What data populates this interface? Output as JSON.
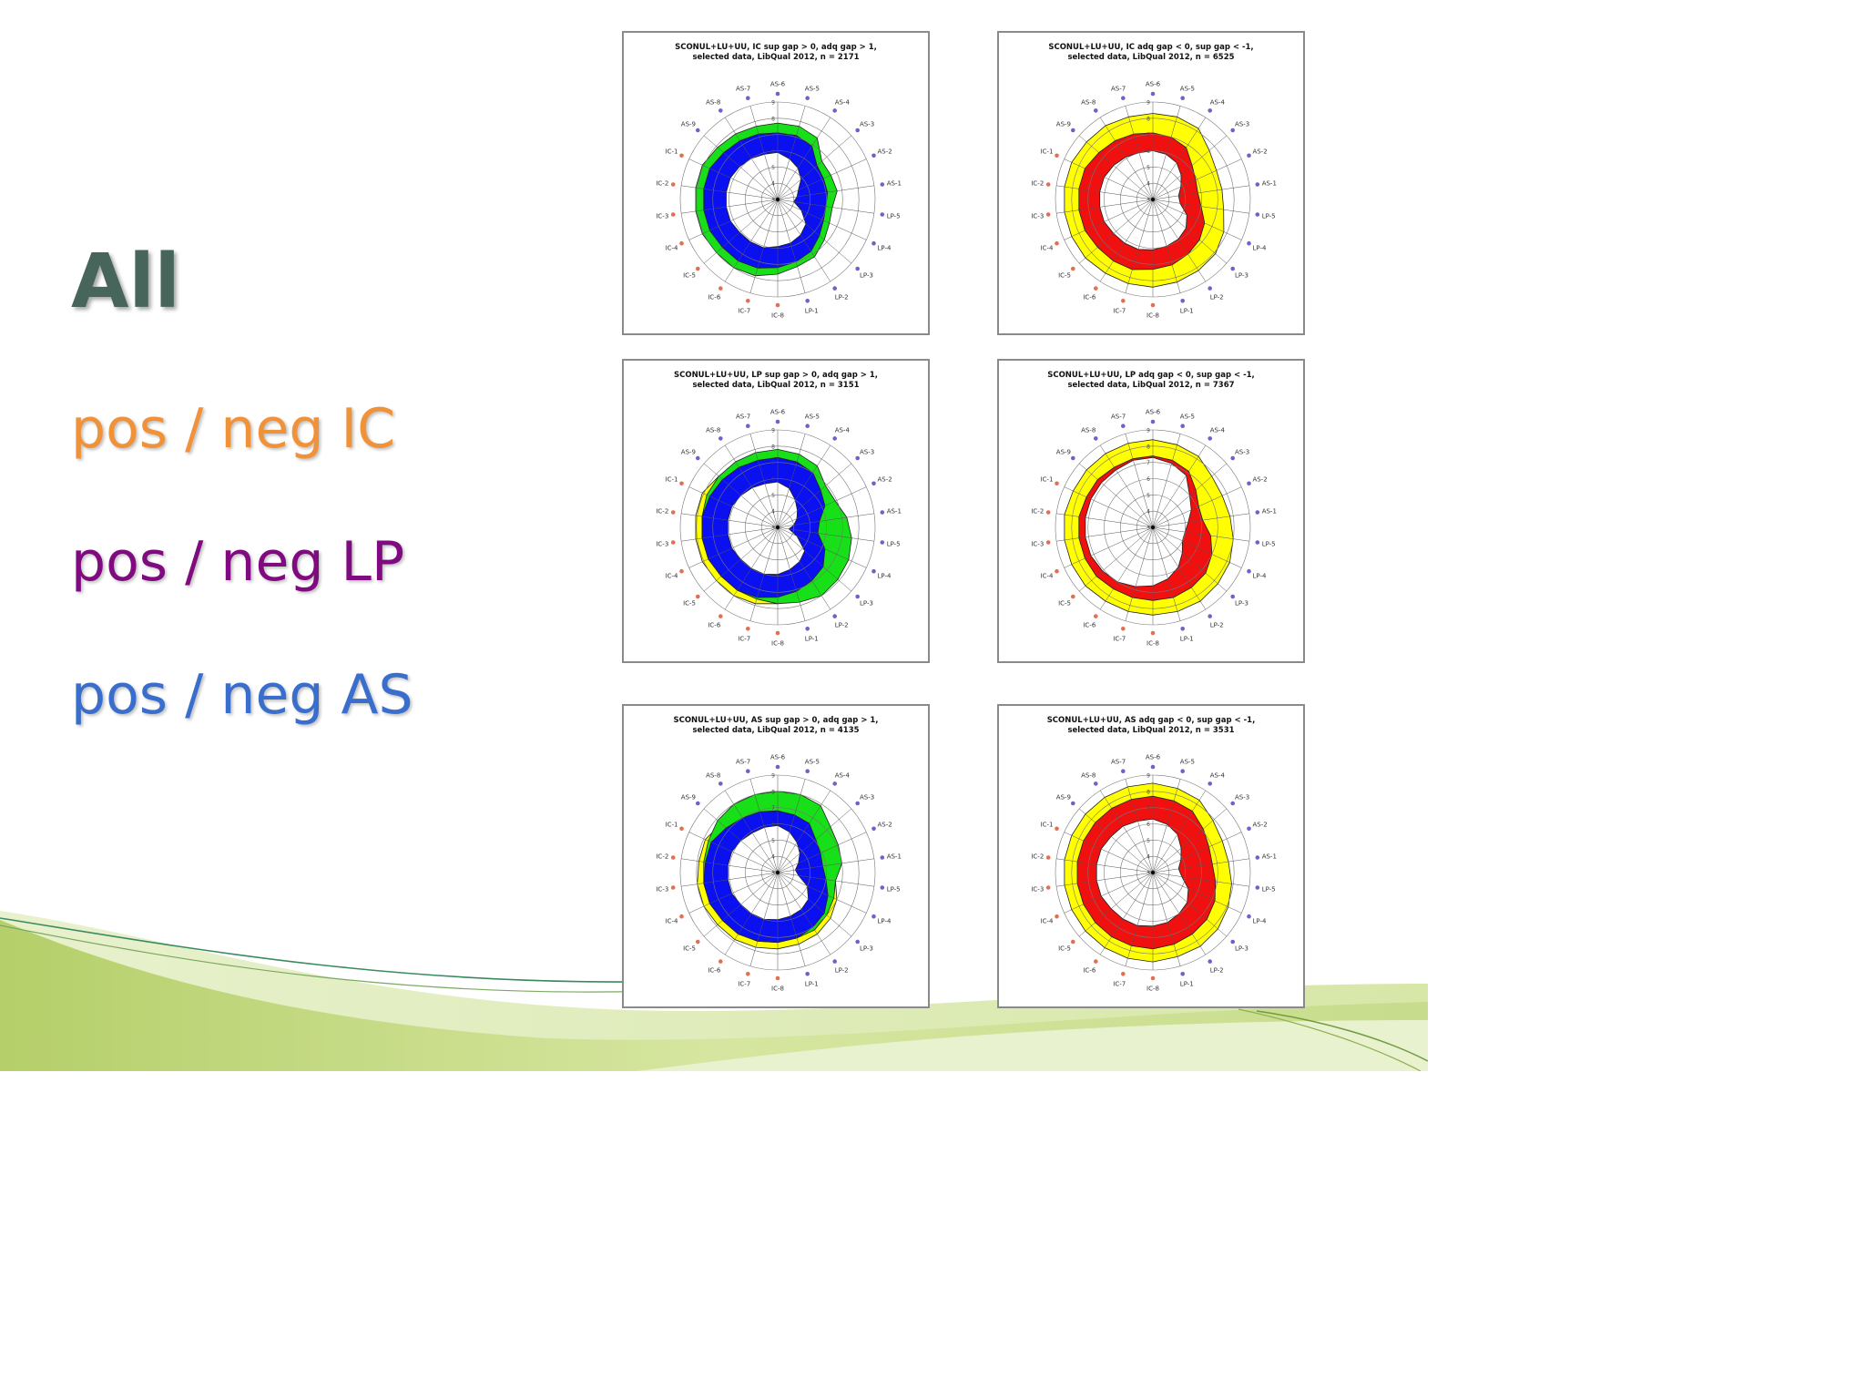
{
  "heading": "All",
  "labels": [
    {
      "text": "pos / neg IC",
      "color": "#f0923a"
    },
    {
      "text": "pos / neg LP",
      "color": "#800a80"
    },
    {
      "text": "pos / neg AS",
      "color": "#3a6ecc"
    }
  ],
  "colors": {
    "heading": "#47655a",
    "green": "#18e018",
    "blue": "#0a10f0",
    "yellow": "#ffff00",
    "red": "#f01010"
  },
  "chart_data": [
    {
      "type": "radar",
      "title_line1": "SCONUL+LU+UU, IC sup gap > 0, adq gap > 1,",
      "title_line2": "selected data, LibQual 2012, n = 2171",
      "categories": [
        "AS-6",
        "AS-5",
        "AS-4",
        "AS-3",
        "AS-2",
        "AS-1",
        "LP-5",
        "LP-4",
        "LP-3",
        "LP-2",
        "LP-1",
        "IC-8",
        "IC-7",
        "IC-6",
        "IC-5",
        "IC-4",
        "IC-3",
        "IC-2",
        "IC-1",
        "AS-9",
        "AS-8",
        "AS-7"
      ],
      "scale_labels": [
        "9",
        "8",
        "7",
        "6",
        "5",
        "4",
        "3"
      ],
      "ylim": [
        3,
        9
      ],
      "series": [
        {
          "color": "green",
          "values": [
            7.7,
            7.7,
            7.5,
            6.6,
            6.6,
            6.7,
            6.4,
            6.5,
            6.8,
            7.2,
            7.3,
            7.6,
            7.9,
            8.0,
            8.0,
            8.1,
            8.1,
            8.1,
            8.1,
            7.9,
            7.8,
            7.7
          ]
        },
        {
          "color": "blue",
          "values": [
            7.1,
            7.1,
            6.9,
            6.2,
            6.1,
            6.1,
            6.0,
            6.1,
            6.4,
            6.8,
            7.0,
            7.2,
            7.4,
            7.5,
            7.5,
            7.6,
            7.6,
            7.6,
            7.6,
            7.4,
            7.3,
            7.2
          ]
        },
        {
          "color": "white",
          "values": [
            5.9,
            5.6,
            5.3,
            4.9,
            4.4,
            4.2,
            4.0,
            4.6,
            5.3,
            5.6,
            5.8,
            5.9,
            6.1,
            6.1,
            6.1,
            6.2,
            6.2,
            6.2,
            6.2,
            6.1,
            6.0,
            5.9
          ]
        }
      ]
    },
    {
      "type": "radar",
      "title_line1": "SCONUL+LU+UU, IC adq gap < 0, sup gap < -1,",
      "title_line2": "selected data, LibQual 2012, n = 6525",
      "categories": [
        "AS-6",
        "AS-5",
        "AS-4",
        "AS-3",
        "AS-2",
        "AS-1",
        "LP-5",
        "LP-4",
        "LP-3",
        "LP-2",
        "LP-1",
        "IC-8",
        "IC-7",
        "IC-6",
        "IC-5",
        "IC-4",
        "IC-3",
        "IC-2",
        "IC-1",
        "AS-9",
        "AS-8",
        "AS-7"
      ],
      "scale_labels": [
        "9",
        "8",
        "7",
        "6",
        "5",
        "4",
        "3"
      ],
      "ylim": [
        3,
        9
      ],
      "series": [
        {
          "color": "yellow",
          "values": [
            8.3,
            8.3,
            8.2,
            7.6,
            7.3,
            7.3,
            7.4,
            7.8,
            8.1,
            8.2,
            8.3,
            8.4,
            8.4,
            8.4,
            8.5,
            8.5,
            8.5,
            8.5,
            8.5,
            8.4,
            8.4,
            8.3
          ]
        },
        {
          "color": "red",
          "values": [
            7.1,
            7.0,
            6.8,
            6.2,
            5.9,
            5.8,
            6.0,
            6.5,
            6.8,
            7.0,
            7.2,
            7.3,
            7.5,
            7.5,
            7.5,
            7.6,
            7.6,
            7.6,
            7.6,
            7.4,
            7.3,
            7.2
          ]
        },
        {
          "color": "white",
          "values": [
            6.0,
            5.9,
            5.7,
            5.3,
            4.9,
            4.6,
            4.7,
            5.3,
            5.7,
            5.9,
            6.0,
            6.1,
            6.2,
            6.2,
            6.2,
            6.3,
            6.3,
            6.3,
            6.3,
            6.2,
            6.1,
            6.0
          ]
        }
      ]
    },
    {
      "type": "radar",
      "title_line1": "SCONUL+LU+UU, LP sup gap > 0, adq gap > 1,",
      "title_line2": "selected data, LibQual 2012, n = 3151",
      "categories": [
        "AS-6",
        "AS-5",
        "AS-4",
        "AS-3",
        "AS-2",
        "AS-1",
        "LP-5",
        "LP-4",
        "LP-3",
        "LP-2",
        "LP-1",
        "IC-8",
        "IC-7",
        "IC-6",
        "IC-5",
        "IC-4",
        "IC-3",
        "IC-2",
        "IC-1",
        "AS-9",
        "AS-8",
        "AS-7"
      ],
      "scale_labels": [
        "9",
        "8",
        "7",
        "6",
        "5",
        "4",
        "3"
      ],
      "ylim": [
        3,
        9
      ],
      "series": [
        {
          "color": "yellow",
          "values": [
            7.6,
            7.4,
            7.2,
            6.6,
            6.6,
            6.7,
            6.9,
            7.2,
            7.4,
            7.5,
            7.6,
            7.7,
            7.9,
            8.0,
            8.0,
            8.1,
            8.1,
            8.1,
            8.1,
            7.8,
            7.6,
            7.6
          ]
        },
        {
          "color": "green",
          "values": [
            7.8,
            7.7,
            7.5,
            6.9,
            6.9,
            7.3,
            7.6,
            7.8,
            7.9,
            8.0,
            7.8,
            7.7,
            7.6,
            7.6,
            7.6,
            7.7,
            7.7,
            7.7,
            7.8,
            7.8,
            7.8,
            7.8
          ]
        },
        {
          "color": "blue",
          "values": [
            7.3,
            7.2,
            7.0,
            6.5,
            6.2,
            5.6,
            5.5,
            6.2,
            6.7,
            6.9,
            7.1,
            7.3,
            7.5,
            7.6,
            7.6,
            7.7,
            7.7,
            7.7,
            7.6,
            7.5,
            7.4,
            7.3
          ]
        },
        {
          "color": "white",
          "values": [
            5.8,
            5.5,
            5.0,
            4.6,
            4.3,
            4.0,
            3.7,
            4.3,
            5.2,
            5.5,
            5.7,
            5.9,
            6.0,
            6.0,
            6.0,
            6.1,
            6.1,
            6.1,
            6.1,
            6.0,
            5.9,
            5.8
          ]
        }
      ]
    },
    {
      "type": "radar",
      "title_line1": "SCONUL+LU+UU, LP adq gap < 0, sup gap < -1,",
      "title_line2": "selected data, LibQual 2012, n = 7367",
      "categories": [
        "AS-6",
        "AS-5",
        "AS-4",
        "AS-3",
        "AS-2",
        "AS-1",
        "LP-5",
        "LP-4",
        "LP-3",
        "LP-2",
        "LP-1",
        "IC-8",
        "IC-7",
        "IC-6",
        "IC-5",
        "IC-4",
        "IC-3",
        "IC-2",
        "IC-1",
        "AS-9",
        "AS-8",
        "AS-7"
      ],
      "scale_labels": [
        "9",
        "8",
        "7",
        "6",
        "5",
        "4",
        "3"
      ],
      "ylim": [
        3,
        9
      ],
      "series": [
        {
          "color": "yellow",
          "values": [
            8.4,
            8.3,
            8.2,
            7.8,
            7.7,
            7.8,
            8.0,
            8.2,
            8.3,
            8.4,
            8.4,
            8.4,
            8.4,
            8.4,
            8.5,
            8.5,
            8.5,
            8.5,
            8.4,
            8.4,
            8.4,
            8.4
          ]
        },
        {
          "color": "red",
          "values": [
            7.4,
            7.3,
            7.1,
            6.5,
            6.1,
            6.1,
            6.6,
            7.0,
            7.3,
            7.4,
            7.5,
            7.5,
            7.5,
            7.5,
            7.6,
            7.6,
            7.6,
            7.6,
            7.5,
            7.5,
            7.4,
            7.4
          ]
        },
        {
          "color": "white",
          "values": [
            7.3,
            7.1,
            6.8,
            6.0,
            5.6,
            5.2,
            5.0,
            5.0,
            5.4,
            5.9,
            6.3,
            6.6,
            6.8,
            7.0,
            7.1,
            7.2,
            7.2,
            7.2,
            7.2,
            7.2,
            7.2,
            7.3
          ]
        }
      ]
    },
    {
      "type": "radar",
      "title_line1": "SCONUL+LU+UU, AS sup gap > 0, adq gap > 1,",
      "title_line2": "selected data, LibQual 2012, n = 4135",
      "categories": [
        "AS-6",
        "AS-5",
        "AS-4",
        "AS-3",
        "AS-2",
        "AS-1",
        "LP-5",
        "LP-4",
        "LP-3",
        "LP-2",
        "LP-1",
        "IC-8",
        "IC-7",
        "IC-6",
        "IC-5",
        "IC-4",
        "IC-3",
        "IC-2",
        "IC-1",
        "AS-9",
        "AS-8",
        "AS-7"
      ],
      "scale_labels": [
        "9",
        "8",
        "7",
        "6",
        "5",
        "4",
        "3"
      ],
      "ylim": [
        3,
        9
      ],
      "series": [
        {
          "color": "yellow",
          "values": [
            7.2,
            7.1,
            7.0,
            6.5,
            6.3,
            6.3,
            6.6,
            7.0,
            7.3,
            7.5,
            7.6,
            7.7,
            7.8,
            7.9,
            7.9,
            8.0,
            8.0,
            7.9,
            7.9,
            7.6,
            7.4,
            7.3
          ]
        },
        {
          "color": "green",
          "values": [
            8.0,
            8.0,
            7.9,
            7.3,
            7.1,
            7.0,
            6.6,
            6.8,
            7.0,
            7.2,
            7.2,
            7.3,
            7.4,
            7.5,
            7.5,
            7.6,
            7.6,
            7.6,
            7.7,
            7.9,
            8.0,
            8.0
          ]
        },
        {
          "color": "blue",
          "values": [
            6.8,
            6.7,
            6.6,
            6.1,
            5.9,
            5.8,
            6.0,
            6.4,
            6.8,
            7.0,
            7.2,
            7.3,
            7.4,
            7.5,
            7.5,
            7.6,
            7.6,
            7.5,
            7.5,
            7.2,
            7.0,
            6.9
          ]
        },
        {
          "color": "white",
          "values": [
            5.9,
            5.6,
            5.2,
            4.8,
            4.4,
            4.1,
            4.3,
            5.0,
            5.5,
            5.7,
            5.8,
            5.9,
            6.0,
            6.0,
            6.0,
            6.1,
            6.1,
            6.1,
            6.1,
            6.0,
            5.9,
            5.9
          ]
        }
      ]
    },
    {
      "type": "radar",
      "title_line1": "SCONUL+LU+UU, AS adq gap < 0, sup gap < -1,",
      "title_line2": "selected data, LibQual 2012, n = 3531",
      "categories": [
        "AS-6",
        "AS-5",
        "AS-4",
        "AS-3",
        "AS-2",
        "AS-1",
        "LP-5",
        "LP-4",
        "LP-3",
        "LP-2",
        "LP-1",
        "IC-8",
        "IC-7",
        "IC-6",
        "IC-5",
        "IC-4",
        "IC-3",
        "IC-2",
        "IC-1",
        "AS-9",
        "AS-8",
        "AS-7"
      ],
      "scale_labels": [
        "9",
        "8",
        "7",
        "6",
        "5",
        "4",
        "3"
      ],
      "ylim": [
        3,
        9
      ],
      "series": [
        {
          "color": "yellow",
          "values": [
            8.5,
            8.4,
            8.3,
            7.9,
            7.7,
            7.7,
            7.9,
            8.1,
            8.3,
            8.4,
            8.4,
            8.5,
            8.5,
            8.5,
            8.5,
            8.5,
            8.5,
            8.5,
            8.5,
            8.5,
            8.5,
            8.5
          ]
        },
        {
          "color": "red",
          "values": [
            7.7,
            7.6,
            7.5,
            7.1,
            6.8,
            6.7,
            6.9,
            7.2,
            7.4,
            7.5,
            7.6,
            7.7,
            7.7,
            7.7,
            7.7,
            7.7,
            7.7,
            7.7,
            7.7,
            7.7,
            7.7,
            7.7
          ]
        },
        {
          "color": "white",
          "values": [
            6.3,
            6.1,
            5.8,
            5.3,
            4.9,
            4.6,
            4.8,
            5.4,
            5.8,
            6.0,
            6.2,
            6.3,
            6.4,
            6.4,
            6.4,
            6.5,
            6.5,
            6.5,
            6.5,
            6.4,
            6.4,
            6.3
          ]
        }
      ]
    }
  ]
}
